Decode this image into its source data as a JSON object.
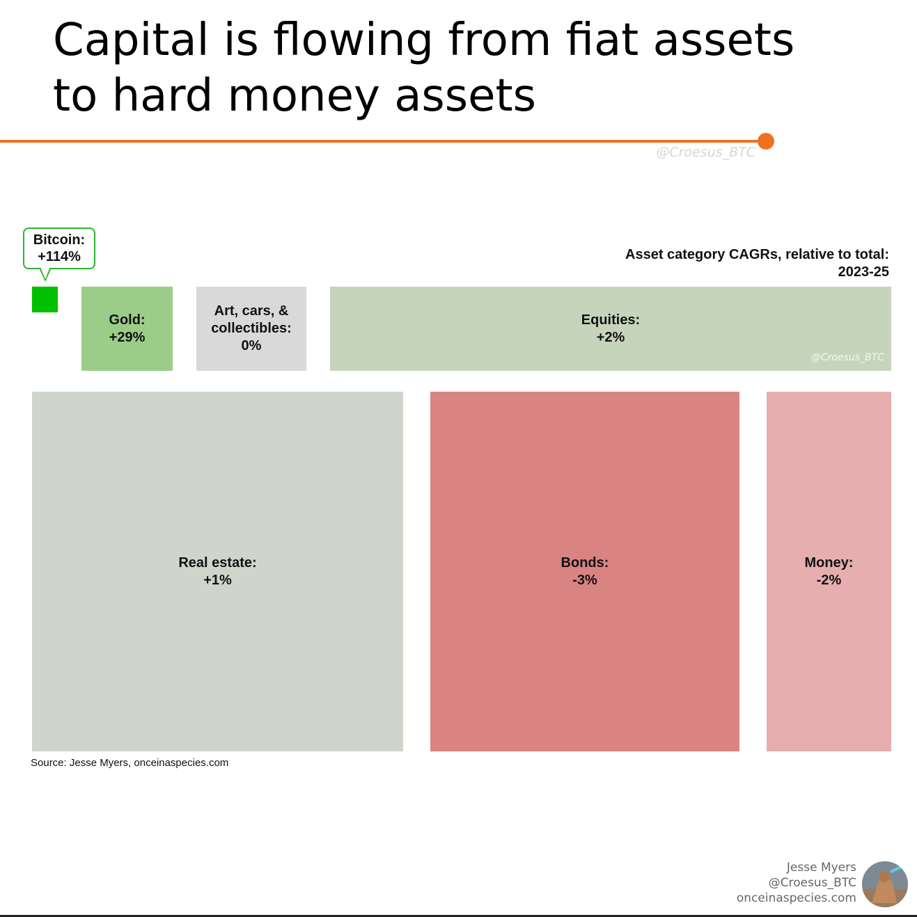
{
  "page": {
    "title_line1": "Capital is flowing from fiat assets",
    "title_line2": "to hard money assets",
    "watermark": "@Croesus_BTC",
    "source": "Source:  Jesse Myers, onceinaspecies.com",
    "credits": {
      "name": "Jesse Myers",
      "handle": "@Croesus_BTC",
      "site": "onceinaspecies.com"
    },
    "accent_color": "#f07020"
  },
  "chart_data": {
    "type": "treemap",
    "title": "Asset category CAGRs, relative to total:",
    "subtitle": "2023-25",
    "tile_watermark": "@Croesus_BTC",
    "items": [
      {
        "name": "Bitcoin:",
        "value_label": "+114%",
        "cagr": 114,
        "color": "#00c000"
      },
      {
        "name": "Gold:",
        "value_label": "+29%",
        "cagr": 29,
        "color": "#9ccd88"
      },
      {
        "name": "Art, cars, & collectibles:",
        "name_lines": [
          "Art, cars, &",
          "collectibles:"
        ],
        "value_label": "0%",
        "cagr": 0,
        "color": "#d9d9d9"
      },
      {
        "name": "Equities:",
        "value_label": "+2%",
        "cagr": 2,
        "color": "#c6d4bb"
      },
      {
        "name": "Real estate:",
        "value_label": "+1%",
        "cagr": 1,
        "color": "#cfd5cb"
      },
      {
        "name": "Bonds:",
        "value_label": "-3%",
        "cagr": -3,
        "color": "#d98482"
      },
      {
        "name": "Money:",
        "value_label": "-2%",
        "cagr": -2,
        "color": "#e6aeae"
      }
    ]
  }
}
